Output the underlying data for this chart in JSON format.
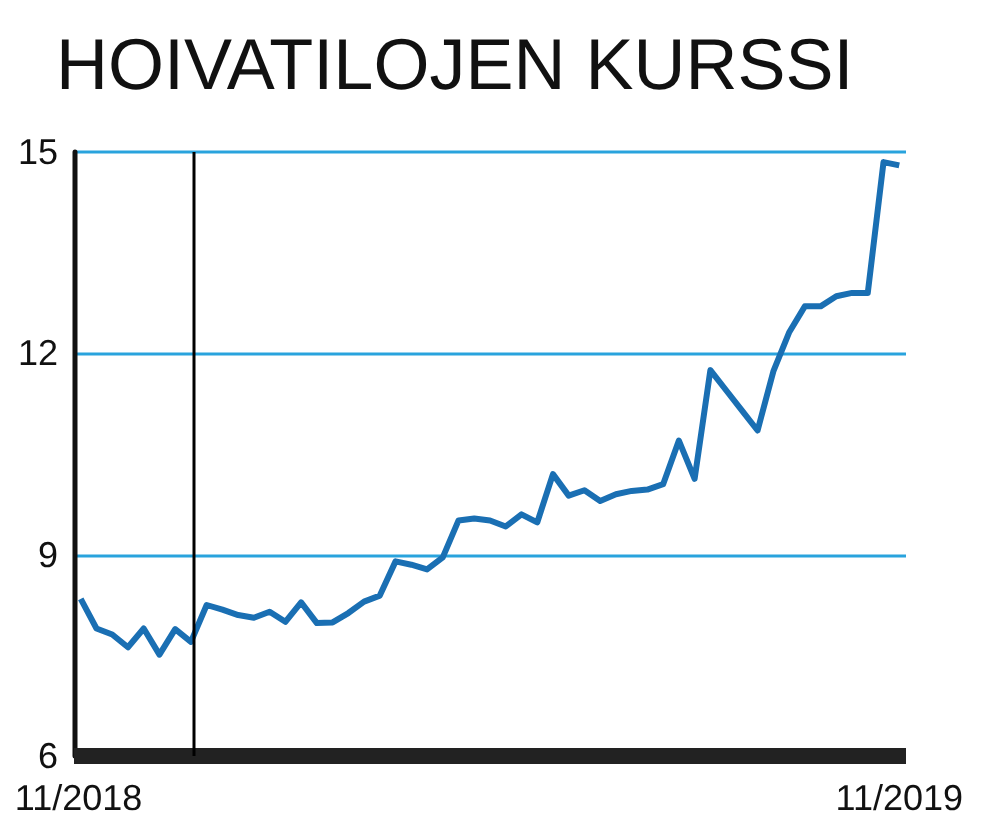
{
  "chart_data": {
    "type": "line",
    "title": "HOIVATILOJEN KURSSI",
    "x": [
      "2018-11-02",
      "2018-11-09",
      "2018-11-16",
      "2018-11-23",
      "2018-11-30",
      "2018-12-07",
      "2018-12-14",
      "2018-12-21",
      "2018-12-28",
      "2019-01-04",
      "2019-01-11",
      "2019-01-18",
      "2019-01-25",
      "2019-02-01",
      "2019-02-08",
      "2019-02-15",
      "2019-02-22",
      "2019-03-01",
      "2019-03-08",
      "2019-03-15",
      "2019-03-22",
      "2019-03-29",
      "2019-04-05",
      "2019-04-12",
      "2019-04-19",
      "2019-04-26",
      "2019-05-03",
      "2019-05-10",
      "2019-05-17",
      "2019-05-24",
      "2019-05-31",
      "2019-06-07",
      "2019-06-14",
      "2019-06-21",
      "2019-06-28",
      "2019-07-05",
      "2019-07-12",
      "2019-07-19",
      "2019-07-26",
      "2019-08-02",
      "2019-08-09",
      "2019-08-16",
      "2019-08-23",
      "2019-08-30",
      "2019-09-06",
      "2019-09-13",
      "2019-09-20",
      "2019-09-27",
      "2019-10-04",
      "2019-10-11",
      "2019-10-18",
      "2019-10-25",
      "2019-11-01"
    ],
    "series": [
      {
        "color": "#1a6fb3",
        "values": [
          8.34,
          7.9,
          7.81,
          7.62,
          7.9,
          7.51,
          7.89,
          7.7,
          8.25,
          8.18,
          8.1,
          8.06,
          8.15,
          8.0,
          8.29,
          7.98,
          7.99,
          8.13,
          8.3,
          8.39,
          8.9,
          8.85,
          8.78,
          8.96,
          9.51,
          9.54,
          9.51,
          9.42,
          9.6,
          9.48,
          10.2,
          9.88,
          9.96,
          9.8,
          9.9,
          9.95,
          9.97,
          10.05,
          10.7,
          10.13,
          11.75,
          11.45,
          11.15,
          10.85,
          11.73,
          12.31,
          12.7,
          12.7,
          12.85,
          12.9,
          12.9,
          14.85,
          14.8
        ]
      }
    ],
    "xlim": [
      "2018-10-30",
      "2019-11-04"
    ],
    "xticks": [
      {
        "value": "2018-11",
        "label": "11/2018"
      },
      {
        "value": "2019-11",
        "label": "11/2019"
      }
    ],
    "ylim": [
      6,
      15
    ],
    "yticks": [
      6,
      9,
      12,
      15
    ],
    "ref_lines": [
      {
        "axis": "x",
        "value": "2018-12-22",
        "color": "#000000"
      }
    ],
    "grid": "y",
    "marker": "none"
  }
}
